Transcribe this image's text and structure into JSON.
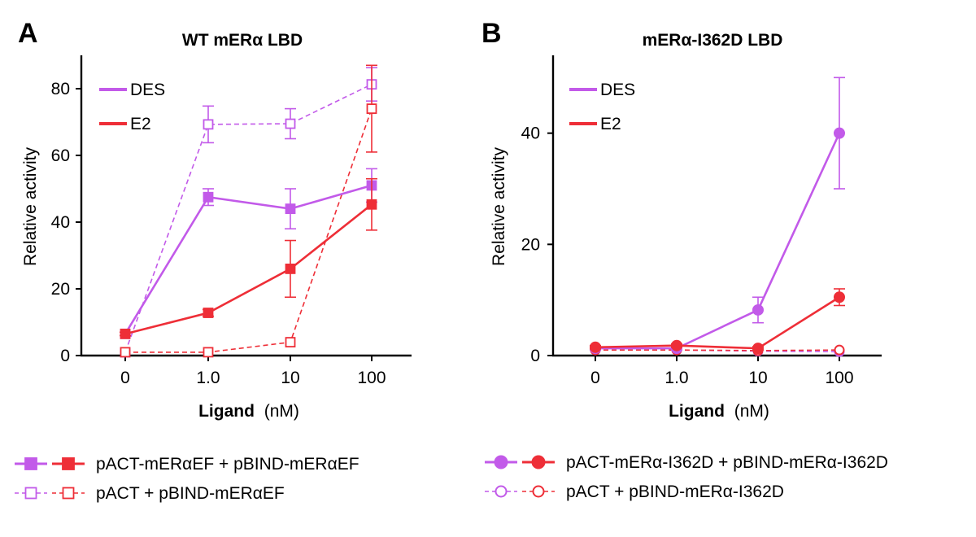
{
  "colors": {
    "des": "#c25ae9",
    "e2": "#ee2e37",
    "axis": "#000000"
  },
  "chart_data": [
    {
      "panel": "A",
      "title": "WT mERα LBD",
      "type": "line",
      "xlabel_bold": "Ligand",
      "xlabel_unit": "(nM)",
      "ylabel": "Relative activity",
      "categories": [
        "0",
        "1.0",
        "10",
        "100"
      ],
      "yticks": [
        0,
        20,
        40,
        60,
        80
      ],
      "ylim": [
        0,
        90
      ],
      "marker": "square",
      "inline_legend": [
        {
          "label": "DES",
          "color_key": "des"
        },
        {
          "label": "E2",
          "color_key": "e2"
        }
      ],
      "series": [
        {
          "name": "DES pACT + pBIND-mERαEF",
          "color_key": "des",
          "style": "dashed",
          "filled": false,
          "values": [
            1,
            69.3,
            69.5,
            81.3
          ],
          "errors": [
            0,
            5.5,
            4.5,
            5
          ]
        },
        {
          "name": "E2 pACT + pBIND-mERαEF",
          "color_key": "e2",
          "style": "dashed",
          "filled": false,
          "values": [
            1,
            1,
            4,
            74
          ],
          "errors": [
            0,
            0,
            0,
            13
          ]
        },
        {
          "name": "DES pACT-mERαEF + pBIND-mERαEF",
          "color_key": "des",
          "style": "solid",
          "filled": true,
          "values": [
            6.5,
            47.5,
            44,
            51
          ],
          "errors": [
            0.5,
            2.5,
            6,
            5
          ]
        },
        {
          "name": "E2 pACT-mERαEF + pBIND-mERαEF",
          "color_key": "e2",
          "style": "solid",
          "filled": true,
          "values": [
            6.5,
            12.8,
            26,
            45.3
          ],
          "errors": [
            0.5,
            1,
            8.5,
            7.7
          ]
        }
      ]
    },
    {
      "panel": "B",
      "title": "mERα-I362D LBD",
      "type": "line",
      "xlabel_bold": "Ligand",
      "xlabel_unit": "(nM)",
      "ylabel": "Relative activity",
      "categories": [
        "0",
        "1.0",
        "10",
        "100"
      ],
      "yticks": [
        0,
        20,
        40
      ],
      "ylim": [
        0,
        54
      ],
      "marker": "circle",
      "inline_legend": [
        {
          "label": "DES",
          "color_key": "des"
        },
        {
          "label": "E2",
          "color_key": "e2"
        }
      ],
      "series": [
        {
          "name": "DES pACT + pBIND-mERα-I362D",
          "color_key": "des",
          "style": "dashed",
          "filled": false,
          "values": [
            1,
            1,
            0.8,
            0.7
          ],
          "errors": [
            0,
            0,
            0,
            0
          ]
        },
        {
          "name": "E2 pACT + pBIND-mERα-I362D",
          "color_key": "e2",
          "style": "dashed",
          "filled": false,
          "values": [
            1,
            1,
            0.9,
            1
          ],
          "errors": [
            0,
            0,
            0,
            0
          ]
        },
        {
          "name": "DES pACT-mERα-I362D + pBIND-mERα-I362D",
          "color_key": "des",
          "style": "solid",
          "filled": true,
          "values": [
            1.3,
            1.3,
            8.2,
            40
          ],
          "errors": [
            0.3,
            0.3,
            2.3,
            10
          ]
        },
        {
          "name": "E2 pACT-mERα-I362D + pBIND-mERα-I362D",
          "color_key": "e2",
          "style": "solid",
          "filled": true,
          "values": [
            1.5,
            1.8,
            1.3,
            10.5
          ],
          "errors": [
            0.3,
            0.3,
            0.3,
            1.5
          ]
        }
      ]
    }
  ],
  "bottom_legend": {
    "left": [
      {
        "label": "pACT-mERαEF + pBIND-mERαEF",
        "marker": "square",
        "filled": true,
        "style": "solid"
      },
      {
        "label": "pACT + pBIND-mERαEF",
        "marker": "square",
        "filled": false,
        "style": "dashed"
      }
    ],
    "right": [
      {
        "label": "pACT-mERα-I362D + pBIND-mERα-I362D",
        "marker": "circle",
        "filled": true,
        "style": "solid"
      },
      {
        "label": "pACT + pBIND-mERα-I362D",
        "marker": "circle",
        "filled": false,
        "style": "dashed"
      }
    ]
  }
}
